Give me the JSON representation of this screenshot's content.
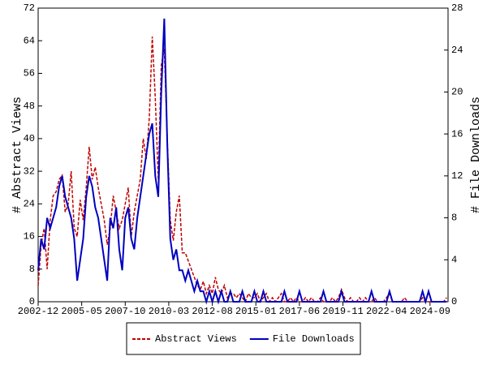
{
  "chart_data": {
    "type": "line",
    "y_label": "# Abstract Views",
    "y2_label": "# File Downloads",
    "x": [
      "2002-12",
      "2003-02",
      "2003-04",
      "2003-06",
      "2003-08",
      "2003-10",
      "2003-12",
      "2004-02",
      "2004-04",
      "2004-06",
      "2004-08",
      "2004-10",
      "2004-12",
      "2005-02",
      "2005-04",
      "2005-06",
      "2005-08",
      "2005-10",
      "2005-12",
      "2006-02",
      "2006-04",
      "2006-06",
      "2006-08",
      "2006-10",
      "2006-12",
      "2007-02",
      "2007-04",
      "2007-06",
      "2007-08",
      "2007-10",
      "2007-12",
      "2008-02",
      "2008-04",
      "2008-06",
      "2008-08",
      "2008-10",
      "2008-12",
      "2009-02",
      "2009-04",
      "2009-06",
      "2009-08",
      "2009-10",
      "2009-12",
      "2010-02",
      "2010-04",
      "2010-06",
      "2010-08",
      "2010-10",
      "2010-12",
      "2011-02",
      "2011-04",
      "2011-06",
      "2011-08",
      "2011-10",
      "2011-12",
      "2012-02",
      "2012-04",
      "2012-06",
      "2012-08",
      "2012-10",
      "2012-12",
      "2013-02",
      "2013-04",
      "2013-06",
      "2013-08",
      "2013-10",
      "2013-12",
      "2014-02",
      "2014-04",
      "2014-06",
      "2014-08",
      "2014-10",
      "2014-12",
      "2015-02",
      "2015-04",
      "2015-06",
      "2015-08",
      "2015-10",
      "2015-12",
      "2016-02",
      "2016-04",
      "2016-06",
      "2016-08",
      "2016-10",
      "2016-12",
      "2017-02",
      "2017-04",
      "2017-06",
      "2017-08",
      "2017-10",
      "2017-12",
      "2018-02",
      "2018-04",
      "2018-06",
      "2018-08",
      "2018-10",
      "2018-12",
      "2019-02",
      "2019-04",
      "2019-06",
      "2019-08",
      "2019-10",
      "2019-12",
      "2020-02",
      "2020-04",
      "2020-06",
      "2020-08",
      "2020-10",
      "2020-12",
      "2021-02",
      "2021-04",
      "2021-06",
      "2021-08",
      "2021-10",
      "2021-12",
      "2022-02",
      "2022-04",
      "2022-06",
      "2022-08",
      "2022-10",
      "2022-12",
      "2023-02",
      "2023-04",
      "2023-06",
      "2023-08",
      "2023-10",
      "2023-12",
      "2024-02",
      "2024-04",
      "2024-06",
      "2024-08",
      "2024-10",
      "2024-12",
      "2025-02",
      "2025-04",
      "2025-06",
      "2025-08"
    ],
    "series": [
      {
        "name": "Abstract Views",
        "color": "#c00000",
        "dash": true,
        "values": [
          4,
          14,
          18,
          8,
          20,
          26,
          27,
          30,
          31,
          22,
          24,
          32,
          18,
          16,
          25,
          20,
          28,
          38,
          30,
          33,
          28,
          24,
          20,
          14,
          18,
          26,
          22,
          18,
          20,
          24,
          28,
          16,
          22,
          26,
          30,
          40,
          35,
          45,
          65,
          50,
          30,
          58,
          62,
          40,
          20,
          15,
          22,
          26,
          12,
          12,
          10,
          8,
          6,
          4,
          3,
          5,
          2,
          4,
          2,
          6,
          3,
          2,
          4,
          1,
          2,
          2,
          1,
          2,
          1,
          0,
          2,
          1,
          1,
          2,
          0,
          1,
          2,
          0,
          1,
          0,
          1,
          2,
          0,
          0,
          1,
          0,
          1,
          0,
          0,
          1,
          0,
          1,
          0,
          0,
          1,
          0,
          0,
          0,
          1,
          0,
          1,
          3,
          1,
          0,
          1,
          0,
          0,
          1,
          0,
          1,
          0,
          0,
          1,
          0,
          0,
          0,
          1,
          2,
          0,
          0,
          0,
          0,
          1,
          0,
          0,
          0,
          0,
          0,
          1,
          0,
          0,
          0,
          0,
          0,
          0,
          0,
          1
        ]
      },
      {
        "name": "File Downloads",
        "color": "#0000c0",
        "axis": "y2",
        "values": [
          3,
          6,
          5,
          8,
          7,
          8,
          9,
          11,
          12,
          10,
          9,
          8,
          6,
          2,
          4,
          6,
          10,
          12,
          11,
          9,
          8,
          6,
          4,
          2,
          8,
          7,
          9,
          5,
          3,
          8,
          9,
          6,
          5,
          8,
          10,
          12,
          14,
          16,
          17,
          12,
          10,
          20,
          27,
          15,
          6,
          4,
          5,
          3,
          3,
          2,
          3,
          2,
          1,
          2,
          1,
          1,
          0,
          1,
          0,
          1,
          0,
          1,
          0,
          0,
          1,
          0,
          0,
          0,
          1,
          0,
          0,
          0,
          1,
          0,
          0,
          1,
          0,
          0,
          0,
          0,
          0,
          0,
          1,
          0,
          0,
          0,
          0,
          1,
          0,
          0,
          0,
          0,
          0,
          0,
          0,
          1,
          0,
          0,
          0,
          0,
          0,
          1,
          0,
          0,
          0,
          0,
          0,
          0,
          0,
          0,
          0,
          1,
          0,
          0,
          0,
          0,
          0,
          1,
          0,
          0,
          0,
          0,
          0,
          0,
          0,
          0,
          0,
          0,
          1,
          0,
          1,
          0,
          0,
          0,
          0,
          0,
          0
        ]
      }
    ],
    "xlim": [
      "2002-12",
      "2025-09"
    ],
    "xticks": [
      "2002-12",
      "2005-05",
      "2007-10",
      "2010-03",
      "2012-08",
      "2015-01",
      "2017-06",
      "2019-11",
      "2022-04",
      "2024-09"
    ],
    "ylim": [
      0,
      72
    ],
    "yticks": [
      0,
      8,
      16,
      24,
      32,
      40,
      48,
      56,
      64,
      72
    ],
    "y2lim": [
      0,
      28
    ],
    "y2ticks": [
      0,
      4,
      8,
      12,
      16,
      20,
      24,
      28
    ],
    "legend": "bottom"
  }
}
